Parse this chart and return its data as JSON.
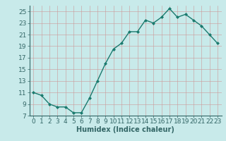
{
  "x": [
    0,
    1,
    2,
    3,
    4,
    5,
    6,
    7,
    8,
    9,
    10,
    11,
    12,
    13,
    14,
    15,
    16,
    17,
    18,
    19,
    20,
    21,
    22,
    23
  ],
  "y": [
    11,
    10.5,
    9,
    8.5,
    8.5,
    7.5,
    7.5,
    10,
    13,
    16,
    18.5,
    19.5,
    21.5,
    21.5,
    23.5,
    23,
    24,
    25.5,
    24,
    24.5,
    23.5,
    22.5,
    21,
    19.5
  ],
  "line_color": "#1a7a6e",
  "marker": "D",
  "markersize": 2,
  "linewidth": 1.0,
  "bg_color": "#c8eaea",
  "grid_color": "#b0d0d0",
  "xlabel": "Humidex (Indice chaleur)",
  "xlim": [
    -0.5,
    23.5
  ],
  "ylim": [
    7,
    26
  ],
  "yticks": [
    7,
    9,
    11,
    13,
    15,
    17,
    19,
    21,
    23,
    25
  ],
  "xticks": [
    0,
    1,
    2,
    3,
    4,
    5,
    6,
    7,
    8,
    9,
    10,
    11,
    12,
    13,
    14,
    15,
    16,
    17,
    18,
    19,
    20,
    21,
    22,
    23
  ],
  "xlabel_fontsize": 7,
  "tick_fontsize": 6.5
}
